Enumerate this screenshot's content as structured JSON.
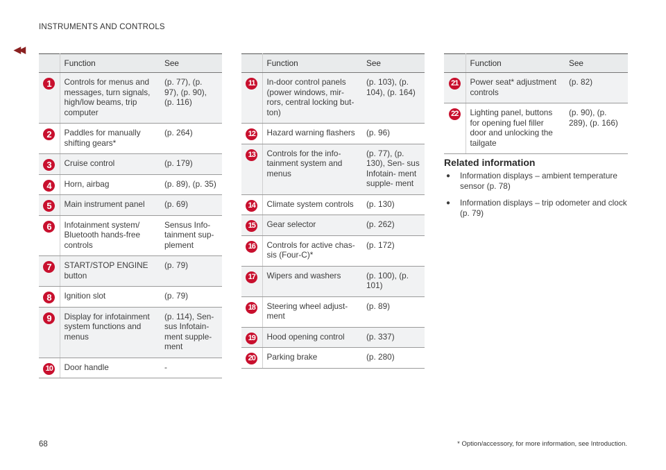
{
  "header": {
    "section_title": "INSTRUMENTS AND CONTROLS"
  },
  "nav": {
    "back_glyph": "◀◀"
  },
  "table_headers": {
    "function": "Function",
    "see": "See"
  },
  "table1": [
    {
      "num": "1",
      "function": "Controls for menus and messages, turn signals, high/low beams, trip computer",
      "see": "(p. 77), (p. 97), (p. 90), (p. 116)"
    },
    {
      "num": "2",
      "function": "Paddles for manually shifting gears*",
      "see": "(p. 264)"
    },
    {
      "num": "3",
      "function": "Cruise control",
      "see": "(p. 179)"
    },
    {
      "num": "4",
      "function": "Horn, airbag",
      "see": "(p. 89), (p. 35)"
    },
    {
      "num": "5",
      "function": "Main instrument panel",
      "see": "(p. 69)"
    },
    {
      "num": "6",
      "function": "Infotainment system/ Bluetooth hands-free controls",
      "see": "Sensus Info- tainment sup- plement"
    },
    {
      "num": "7",
      "function": "START/STOP ENGINE button",
      "see": "(p. 79)"
    },
    {
      "num": "8",
      "function": "Ignition slot",
      "see": "(p. 79)"
    },
    {
      "num": "9",
      "function": "Display for infotainment system functions and menus",
      "see": "(p. 114), Sen- sus Infotain- ment supple- ment"
    },
    {
      "num": "10",
      "function": "Door handle",
      "see": "-"
    }
  ],
  "table2": [
    {
      "num": "11",
      "function": "In-door control panels (power windows, mir- rors, central locking but- ton)",
      "see": "(p. 103), (p. 104), (p. 164)"
    },
    {
      "num": "12",
      "function": "Hazard warning flashers",
      "see": "(p. 96)"
    },
    {
      "num": "13",
      "function": "Controls for the info- tainment system and menus",
      "see": "(p. 77), (p. 130), Sen- sus Infotain- ment supple- ment"
    },
    {
      "num": "14",
      "function": "Climate system controls",
      "see": "(p. 130)"
    },
    {
      "num": "15",
      "function": "Gear selector",
      "see": "(p. 262)"
    },
    {
      "num": "16",
      "function": "Controls for active chas- sis (Four-C)*",
      "see": "(p. 172)"
    },
    {
      "num": "17",
      "function": "Wipers and washers",
      "see": "(p. 100), (p. 101)"
    },
    {
      "num": "18",
      "function": "Steering wheel adjust- ment",
      "see": "(p. 89)"
    },
    {
      "num": "19",
      "function": "Hood opening control",
      "see": "(p. 337)"
    },
    {
      "num": "20",
      "function": "Parking brake",
      "see": "(p. 280)"
    }
  ],
  "table3": [
    {
      "num": "21",
      "function": "Power seat* adjustment controls",
      "see": "(p. 82)"
    },
    {
      "num": "22",
      "function": "Lighting panel, buttons for opening fuel filler door and unlocking the tailgate",
      "see": "(p. 90), (p. 289), (p. 166)"
    }
  ],
  "related": {
    "heading": "Related information",
    "bullet": "●",
    "items": [
      "Information displays – ambient temperature sensor (p. 78)",
      "Information displays – trip odometer and clock (p. 79)"
    ]
  },
  "footer": {
    "page_number": "68",
    "footnote": "* Option/accessory, for more information, see Introduction."
  }
}
